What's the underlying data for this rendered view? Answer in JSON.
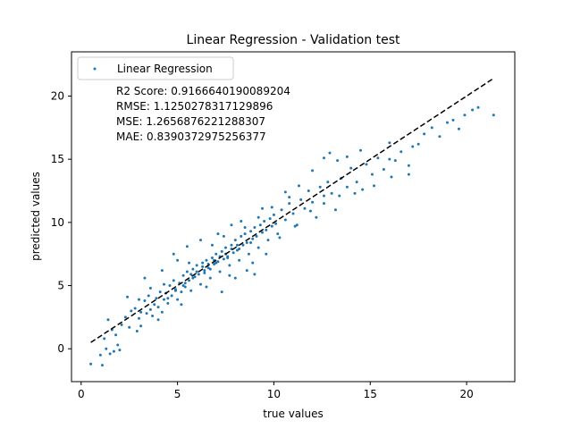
{
  "chart_data": {
    "type": "scatter",
    "title": "Linear Regression - Validation test",
    "xlabel": "true values",
    "ylabel": "predicted values",
    "xlim": [
      -0.5,
      22.5
    ],
    "ylim": [
      -2.6,
      23.5
    ],
    "xticks": [
      0,
      5,
      10,
      15,
      20
    ],
    "yticks": [
      0,
      5,
      10,
      15,
      20
    ],
    "grid": false,
    "legend_position": "top-left",
    "series": [
      {
        "name": "Linear Regression",
        "type": "scatter",
        "color": "#1f77b4",
        "points": [
          [
            0.5,
            -1.2
          ],
          [
            1.1,
            -1.3
          ],
          [
            1.0,
            -0.5
          ],
          [
            1.3,
            0.0
          ],
          [
            1.5,
            -0.4
          ],
          [
            1.7,
            -0.2
          ],
          [
            1.9,
            0.3
          ],
          [
            2.0,
            -0.1
          ],
          [
            1.2,
            0.8
          ],
          [
            1.6,
            1.5
          ],
          [
            1.8,
            1.1
          ],
          [
            1.4,
            2.3
          ],
          [
            2.1,
            1.9
          ],
          [
            2.3,
            2.5
          ],
          [
            2.5,
            1.7
          ],
          [
            2.6,
            3.0
          ],
          [
            2.8,
            3.2
          ],
          [
            3.0,
            2.4
          ],
          [
            2.9,
            1.4
          ],
          [
            3.1,
            2.9
          ],
          [
            3.3,
            3.8
          ],
          [
            3.4,
            2.8
          ],
          [
            3.5,
            4.2
          ],
          [
            3.6,
            3.1
          ],
          [
            3.7,
            2.6
          ],
          [
            3.8,
            3.5
          ],
          [
            3.9,
            4.0
          ],
          [
            4.0,
            3.3
          ],
          [
            4.1,
            4.5
          ],
          [
            4.2,
            2.9
          ],
          [
            4.3,
            3.9
          ],
          [
            4.4,
            4.4
          ],
          [
            4.5,
            3.6
          ],
          [
            4.6,
            5.0
          ],
          [
            4.7,
            4.2
          ],
          [
            4.8,
            5.4
          ],
          [
            4.9,
            4.7
          ],
          [
            5.0,
            3.9
          ],
          [
            5.1,
            5.2
          ],
          [
            5.2,
            4.5
          ],
          [
            5.3,
            5.8
          ],
          [
            5.4,
            4.9
          ],
          [
            5.5,
            6.1
          ],
          [
            5.6,
            5.4
          ],
          [
            5.7,
            4.6
          ],
          [
            5.8,
            6.3
          ],
          [
            5.9,
            5.7
          ],
          [
            6.0,
            6.6
          ],
          [
            6.1,
            5.9
          ],
          [
            6.2,
            5.1
          ],
          [
            6.3,
            6.8
          ],
          [
            6.4,
            6.2
          ],
          [
            6.5,
            7.0
          ],
          [
            6.6,
            6.4
          ],
          [
            6.7,
            5.6
          ],
          [
            6.8,
            7.2
          ],
          [
            6.9,
            6.7
          ],
          [
            7.0,
            7.5
          ],
          [
            7.1,
            6.9
          ],
          [
            7.2,
            6.1
          ],
          [
            7.3,
            7.7
          ],
          [
            7.4,
            7.1
          ],
          [
            7.5,
            8.0
          ],
          [
            7.6,
            7.3
          ],
          [
            7.7,
            6.6
          ],
          [
            7.8,
            8.2
          ],
          [
            7.9,
            7.6
          ],
          [
            8.0,
            8.6
          ],
          [
            8.1,
            7.8
          ],
          [
            8.2,
            7.0
          ],
          [
            8.3,
            8.9
          ],
          [
            8.4,
            8.2
          ],
          [
            8.5,
            9.1
          ],
          [
            8.6,
            8.4
          ],
          [
            8.7,
            7.5
          ],
          [
            8.8,
            9.3
          ],
          [
            8.9,
            8.7
          ],
          [
            9.0,
            9.6
          ],
          [
            9.1,
            8.9
          ],
          [
            9.2,
            8.0
          ],
          [
            9.3,
            9.8
          ],
          [
            9.4,
            9.2
          ],
          [
            9.5,
            10.1
          ],
          [
            9.6,
            9.4
          ],
          [
            9.7,
            8.6
          ],
          [
            9.8,
            10.3
          ],
          [
            9.9,
            9.7
          ],
          [
            10.0,
            10.6
          ],
          [
            10.1,
            9.9
          ],
          [
            10.2,
            9.1
          ],
          [
            10.4,
            11.0
          ],
          [
            10.6,
            10.2
          ],
          [
            10.8,
            11.5
          ],
          [
            11.0,
            10.7
          ],
          [
            11.2,
            9.8
          ],
          [
            11.4,
            11.8
          ],
          [
            11.6,
            11.1
          ],
          [
            11.8,
            12.5
          ],
          [
            12.0,
            11.6
          ],
          [
            12.2,
            10.4
          ],
          [
            12.4,
            12.8
          ],
          [
            12.6,
            12.1
          ],
          [
            12.8,
            13.2
          ],
          [
            13.0,
            12.3
          ],
          [
            13.2,
            11.0
          ],
          [
            13.5,
            13.5
          ],
          [
            13.8,
            12.8
          ],
          [
            14.0,
            14.3
          ],
          [
            14.3,
            13.2
          ],
          [
            14.6,
            12.6
          ],
          [
            14.8,
            14.6
          ],
          [
            15.1,
            13.8
          ],
          [
            15.4,
            15.1
          ],
          [
            15.7,
            14.2
          ],
          [
            16.0,
            15.0
          ],
          [
            16.3,
            14.9
          ],
          [
            16.6,
            15.6
          ],
          [
            17.0,
            14.5
          ],
          [
            17.2,
            16.0
          ],
          [
            17.5,
            16.2
          ],
          [
            17.8,
            17.0
          ],
          [
            18.2,
            17.5
          ],
          [
            18.6,
            16.8
          ],
          [
            19.0,
            17.9
          ],
          [
            19.3,
            18.1
          ],
          [
            19.6,
            17.4
          ],
          [
            19.9,
            18.5
          ],
          [
            20.3,
            18.9
          ],
          [
            20.6,
            19.1
          ],
          [
            21.4,
            18.5
          ],
          [
            5.0,
            7.0
          ],
          [
            4.2,
            6.2
          ],
          [
            3.3,
            5.6
          ],
          [
            4.8,
            7.5
          ],
          [
            5.5,
            8.1
          ],
          [
            6.2,
            8.6
          ],
          [
            7.1,
            9.1
          ],
          [
            7.8,
            9.8
          ],
          [
            8.5,
            9.6
          ],
          [
            9.2,
            10.4
          ],
          [
            9.9,
            11.2
          ],
          [
            10.6,
            12.4
          ],
          [
            11.3,
            12.9
          ],
          [
            12.0,
            14.1
          ],
          [
            12.6,
            15.1
          ],
          [
            12.9,
            15.5
          ],
          [
            13.8,
            15.2
          ],
          [
            14.5,
            15.7
          ],
          [
            16.0,
            16.3
          ],
          [
            13.3,
            14.9
          ],
          [
            7.3,
            4.5
          ],
          [
            8.0,
            5.6
          ],
          [
            8.9,
            6.8
          ],
          [
            9.6,
            7.5
          ],
          [
            10.3,
            8.8
          ],
          [
            11.1,
            9.7
          ],
          [
            11.9,
            10.9
          ],
          [
            12.6,
            11.5
          ],
          [
            13.4,
            12.1
          ],
          [
            14.2,
            12.3
          ],
          [
            15.2,
            12.9
          ],
          [
            16.1,
            13.6
          ],
          [
            17.0,
            13.8
          ],
          [
            3.1,
            1.8
          ],
          [
            4.0,
            2.3
          ],
          [
            5.2,
            3.5
          ],
          [
            6.5,
            4.9
          ],
          [
            7.7,
            5.8
          ],
          [
            8.6,
            6.2
          ],
          [
            9.0,
            5.9
          ],
          [
            2.4,
            4.1
          ],
          [
            3.0,
            3.9
          ],
          [
            3.6,
            4.8
          ],
          [
            4.3,
            5.1
          ],
          [
            5.6,
            6.8
          ],
          [
            6.8,
            8.2
          ],
          [
            7.4,
            8.9
          ],
          [
            8.3,
            10.1
          ],
          [
            9.4,
            11.1
          ],
          [
            10.8,
            12.0
          ],
          [
            5.4,
            5.2
          ],
          [
            5.7,
            5.9
          ],
          [
            6.0,
            6.1
          ],
          [
            6.3,
            6.5
          ],
          [
            6.6,
            6.7
          ],
          [
            6.9,
            7.0
          ],
          [
            7.2,
            7.3
          ],
          [
            7.5,
            7.5
          ],
          [
            7.8,
            7.9
          ],
          [
            8.1,
            8.2
          ],
          [
            4.5,
            4.0
          ],
          [
            4.9,
            4.6
          ],
          [
            5.3,
            5.0
          ],
          [
            5.8,
            5.6
          ],
          [
            6.4,
            6.0
          ],
          [
            6.7,
            6.3
          ],
          [
            7.0,
            6.8
          ],
          [
            7.6,
            7.2
          ],
          [
            8.2,
            7.9
          ],
          [
            8.8,
            8.4
          ]
        ]
      },
      {
        "name": "",
        "type": "line",
        "style": "dashed",
        "color": "#000000",
        "x": [
          0.5,
          21.4
        ],
        "y": [
          0.5,
          21.4
        ]
      }
    ],
    "annotations": [
      "R2 Score: 0.9166640190089204",
      "RMSE: 1.1250278317129896",
      "MSE: 1.2656876221288307",
      "MAE: 0.8390372975256377"
    ]
  }
}
